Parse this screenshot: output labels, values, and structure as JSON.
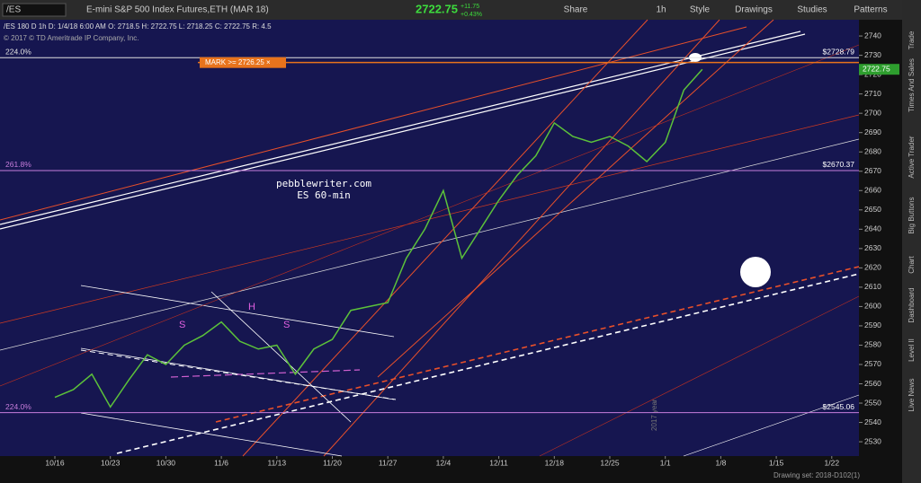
{
  "toolbar": {
    "symbol": "/ES",
    "description": "E-mini S&P 500 Index Futures,ETH (MAR 18)",
    "last": "2722.75",
    "change": "+11.75",
    "change_pct": "+0.43%",
    "buttons": [
      "Share",
      "1h",
      "Style",
      "Drawings",
      "Studies",
      "Patterns"
    ]
  },
  "sidebar_tabs": [
    "Trade",
    "Times And Sales",
    "Active Trader",
    "Big Buttons",
    "Chart",
    "Dashboard",
    "Level II",
    "Live News"
  ],
  "status": "Drawing set: 2018-D102(1)",
  "chart_data": {
    "type": "line",
    "info": "/ES 180 D 1h   D: 1/4/18 6:00 AM   O: 2718.5   H: 2722.75   L: 2718.25   C: 2722.75   R: 4.5",
    "copyright": "© 2017 © TD Ameritrade IP Company, Inc.",
    "annotations": [
      "pebblewriter.com",
      "ES 60-min",
      "S",
      "H",
      "S",
      "2017 year"
    ],
    "categories": [
      "10/16",
      null,
      null,
      "10/23",
      null,
      null,
      "10/30",
      null,
      null,
      "11/6",
      null,
      null,
      "11/13",
      null,
      null,
      "11/20",
      null,
      null,
      "11/27",
      null,
      null,
      "12/4",
      null,
      null,
      "12/11",
      null,
      null,
      "12/18",
      null,
      null,
      "12/25",
      null,
      null,
      "1/1",
      null,
      null,
      "1/8",
      null,
      null,
      "1/15",
      null,
      null,
      "1/22",
      null,
      null
    ],
    "values": [
      2553,
      2557,
      2565,
      2548,
      2562,
      2575,
      2570,
      2580,
      2585,
      2592,
      2582,
      2578,
      2580,
      2565,
      2578,
      2583,
      2598,
      2600,
      2602,
      2625,
      2640,
      2660,
      2625,
      2640,
      2655,
      2668,
      2678,
      2695,
      2688,
      2685,
      2688,
      2683,
      2675,
      2685,
      2712,
      2722.75,
      null,
      null,
      null,
      null,
      null,
      null,
      null,
      null,
      null
    ],
    "color": "#5cc23a",
    "ylim": [
      2522.6,
      2748.4
    ],
    "yticks": [
      2530,
      2540,
      2550,
      2560,
      2570,
      2580,
      2590,
      2600,
      2610,
      2620,
      2630,
      2640,
      2650,
      2660,
      2670,
      2680,
      2690,
      2700,
      2710,
      2720,
      2730,
      2740
    ],
    "levels": [
      {
        "value": 2728.79,
        "label": "$2728.79",
        "tag": "224.0%",
        "color": "#e0e0e0"
      },
      {
        "value": 2670.37,
        "label": "$2670.37",
        "tag": "261.8%",
        "color": "#c77ddb"
      },
      {
        "value": 2545.06,
        "label": "$2545.06",
        "tag": "224.0%",
        "color": "#c77ddb"
      }
    ],
    "mark": {
      "value": 2726.25,
      "label": "MARK >= 2726.25 ×",
      "color": "#e8731c"
    },
    "last": {
      "value": 2722.75,
      "color": "#2e9e2e"
    }
  }
}
